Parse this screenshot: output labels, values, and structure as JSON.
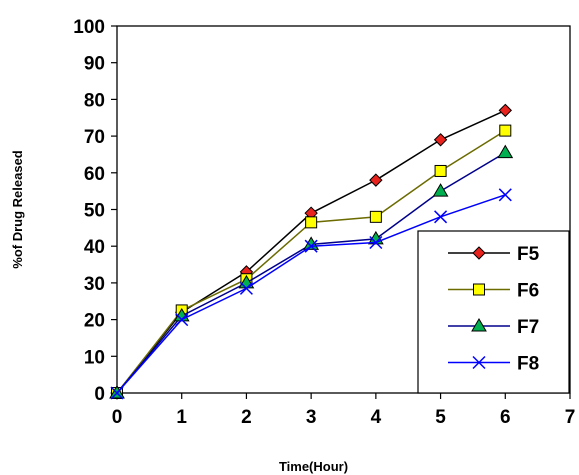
{
  "chart_data": {
    "type": "line",
    "title": "",
    "xlabel": "Time(Hour)",
    "ylabel": "%of Drug Released",
    "xlim": [
      0,
      7
    ],
    "ylim": [
      0,
      100
    ],
    "xticks": [
      0,
      1,
      2,
      3,
      4,
      5,
      6,
      7
    ],
    "yticks": [
      0,
      10,
      20,
      30,
      40,
      50,
      60,
      70,
      80,
      90,
      100
    ],
    "grid": false,
    "legend_position": "bottom-right",
    "x": [
      0,
      1,
      2,
      3,
      4,
      5,
      6
    ],
    "series": [
      {
        "name": "F5",
        "marker": "diamond",
        "line_color": "#000000",
        "marker_fill": "#e8231e",
        "values": [
          0,
          22,
          33,
          49,
          58,
          69,
          77
        ]
      },
      {
        "name": "F6",
        "marker": "square",
        "line_color": "#6b6b00",
        "marker_fill": "#ffff00",
        "values": [
          0,
          22.5,
          31,
          46.5,
          48,
          60.5,
          71.5
        ]
      },
      {
        "name": "F7",
        "marker": "triangle",
        "line_color": "#00008b",
        "marker_fill": "#00b050",
        "values": [
          0,
          21,
          30,
          40.5,
          42,
          55,
          65.5
        ]
      },
      {
        "name": "F8",
        "marker": "cross",
        "line_color": "#0000ff",
        "marker_fill": "#0000ff",
        "values": [
          0,
          20,
          28.5,
          40,
          41,
          48,
          54
        ]
      }
    ]
  }
}
